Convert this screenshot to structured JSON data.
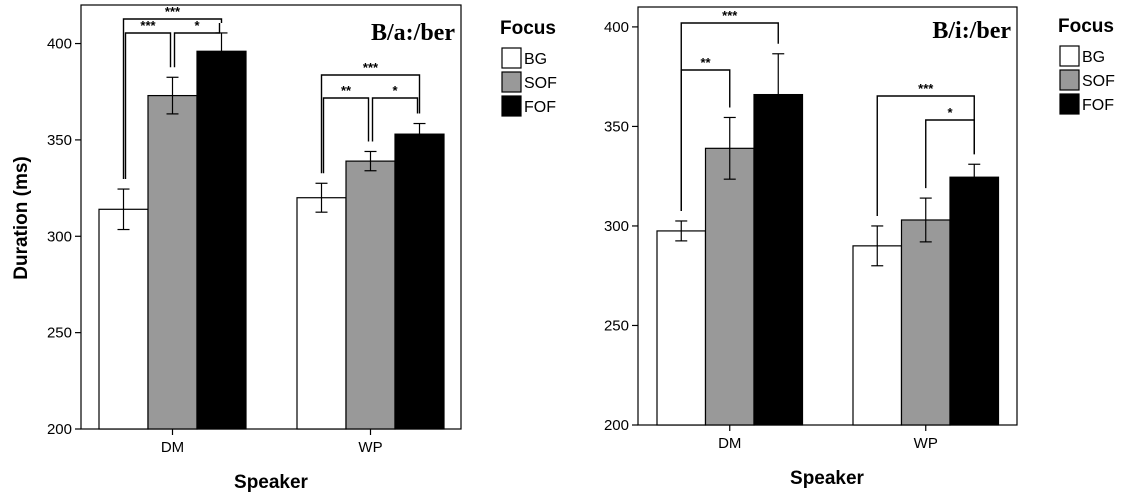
{
  "chart_data": [
    {
      "type": "bar",
      "title": "B/a:/ber",
      "xlabel": "Speaker",
      "ylabel": "Duration (ms)",
      "ylim": [
        200,
        420
      ],
      "yticks": [
        200,
        250,
        300,
        350,
        400
      ],
      "categories": [
        "DM",
        "WP"
      ],
      "legend": {
        "title": "Focus",
        "position": "right"
      },
      "series": [
        {
          "name": "BG",
          "color": "#ffffff",
          "values": [
            314,
            320
          ],
          "error": [
            10.5,
            7.5
          ]
        },
        {
          "name": "SOF",
          "color": "#999999",
          "values": [
            373,
            339
          ],
          "error": [
            9.5,
            5
          ]
        },
        {
          "name": "FOF",
          "color": "#000000",
          "values": [
            396,
            353
          ],
          "error": [
            9.5,
            5.5
          ]
        }
      ],
      "significance": [
        {
          "category": "DM",
          "from": "BG",
          "to": "SOF",
          "label": "***"
        },
        {
          "category": "DM",
          "from": "SOF",
          "to": "FOF",
          "label": "*"
        },
        {
          "category": "DM",
          "from": "BG",
          "to": "FOF",
          "label": "***"
        },
        {
          "category": "WP",
          "from": "BG",
          "to": "SOF",
          "label": "**"
        },
        {
          "category": "WP",
          "from": "SOF",
          "to": "FOF",
          "label": "*"
        },
        {
          "category": "WP",
          "from": "BG",
          "to": "FOF",
          "label": "***"
        }
      ]
    },
    {
      "type": "bar",
      "title": "B/i:/ber",
      "xlabel": "Speaker",
      "ylabel": "",
      "ylim": [
        200,
        410
      ],
      "yticks": [
        200,
        250,
        300,
        350,
        400
      ],
      "categories": [
        "DM",
        "WP"
      ],
      "legend": {
        "title": "Focus",
        "position": "right"
      },
      "series": [
        {
          "name": "BG",
          "color": "#ffffff",
          "values": [
            297.5,
            290
          ],
          "error": [
            5,
            10
          ]
        },
        {
          "name": "SOF",
          "color": "#999999",
          "values": [
            339,
            303
          ],
          "error": [
            15.5,
            11
          ]
        },
        {
          "name": "FOF",
          "color": "#000000",
          "values": [
            366,
            324.5
          ],
          "error": [
            20.5,
            6.5
          ]
        }
      ],
      "significance": [
        {
          "category": "DM",
          "from": "BG",
          "to": "SOF",
          "label": "**"
        },
        {
          "category": "DM",
          "from": "BG",
          "to": "FOF",
          "label": "***"
        },
        {
          "category": "WP",
          "from": "SOF",
          "to": "FOF",
          "label": "*"
        },
        {
          "category": "WP",
          "from": "BG",
          "to": "FOF",
          "label": "***"
        }
      ]
    }
  ]
}
